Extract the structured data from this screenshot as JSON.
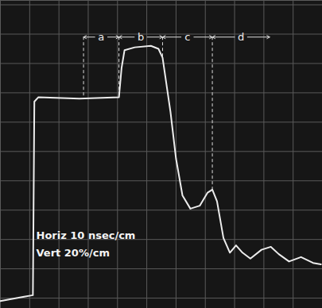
{
  "chart_data": {
    "type": "line",
    "x": [
      0,
      8.1,
      11.1,
      11.6,
      13,
      27,
      40.5,
      41.4,
      42.4,
      45.9,
      51.4,
      54,
      55.4,
      58.1,
      60,
      62.2,
      64.9,
      68.1,
      70.8,
      72.4,
      74,
      76.2,
      78.4,
      80.5,
      82.7,
      85.4,
      89.2,
      92.4,
      95.1,
      98.6,
      102.7,
      106.8,
      109.5
    ],
    "values": [
      -2,
      1,
      2,
      134,
      137,
      136,
      137,
      157,
      169,
      171,
      172,
      170,
      164,
      127,
      95,
      70,
      61,
      63,
      72,
      74,
      66,
      41,
      31,
      36,
      31,
      27,
      33,
      35,
      30,
      25,
      28,
      24,
      23
    ],
    "color": "#ececec",
    "xlim": [
      0,
      110
    ],
    "ylim": [
      -7,
      203
    ],
    "xticks": [
      0,
      10,
      20,
      30,
      40,
      50,
      60,
      70,
      80,
      90,
      100,
      110
    ],
    "yticks": [
      0,
      20,
      40,
      60,
      80,
      100,
      120,
      140,
      160,
      180,
      200
    ],
    "grid": true,
    "tick_labels": false,
    "intervals": [
      {
        "label": "a",
        "from": 28.4,
        "to": 40.5,
        "level": 178
      },
      {
        "label": "b",
        "from": 40.5,
        "to": 55.4,
        "level": 178
      },
      {
        "label": "c",
        "from": 55.4,
        "to": 72.4,
        "level": 178
      },
      {
        "label": "d",
        "from": 72.4,
        "to": 92,
        "level": 178
      }
    ],
    "annotations": [
      "Horiz 10 nsec/cm",
      "Vert 20%/cm"
    ]
  }
}
